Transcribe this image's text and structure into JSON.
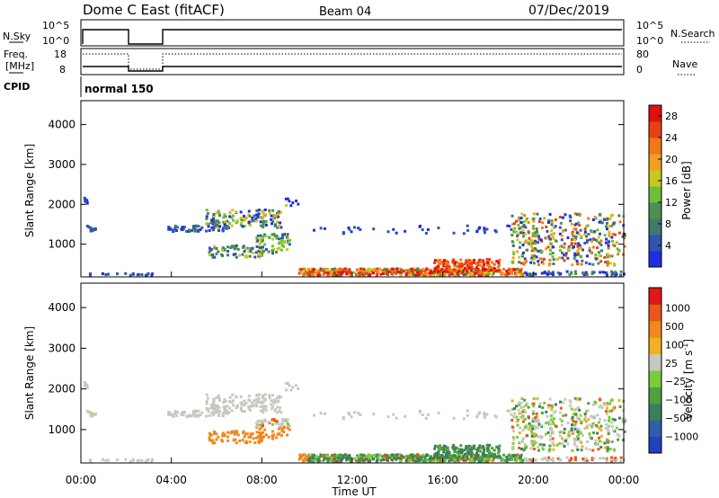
{
  "header": {
    "station": "Dome C East (fitACF)",
    "beam": "Beam 04",
    "date": "07/Dec/2019"
  },
  "panels": {
    "nsky": {
      "label": "N.Sky",
      "right_label": "N.Search",
      "left_ticks": [
        "10^5",
        "10^0"
      ],
      "right_ticks": [
        "10^5",
        "10^0"
      ]
    },
    "freq": {
      "label_top": "Freq.",
      "label_unit": "[MHz]",
      "right_label": "Nave",
      "left_ticks": [
        "18",
        "8"
      ],
      "right_ticks": [
        "80",
        "0"
      ]
    },
    "cpid": {
      "label": "CPID",
      "mode": "normal 150"
    }
  },
  "chart_data": [
    {
      "type": "heatmap",
      "quantity": "power",
      "xlabel": "Time UT",
      "ylabel": "Slant Range [km]",
      "colorbar_label": "Power [dB]",
      "x_ticks": [
        "00:00",
        "04:00",
        "08:00",
        "12:00",
        "16:00",
        "20:00",
        "00:00"
      ],
      "xlim_hours": [
        0,
        24
      ],
      "y_ticks": [
        1000,
        2000,
        3000,
        4000
      ],
      "ylim_km": [
        180,
        4600
      ],
      "colorbar_ticks": [
        4,
        8,
        12,
        16,
        20,
        24,
        28
      ],
      "colorbar_range": [
        0,
        30
      ],
      "colors": [
        "#1f2fe0",
        "#2e55b0",
        "#3f7a6a",
        "#4d8f4e",
        "#6dbf3a",
        "#c9c81c",
        "#f0a020",
        "#f07818",
        "#e84010",
        "#e01010"
      ]
    },
    {
      "type": "heatmap",
      "quantity": "velocity",
      "xlabel": "Time UT",
      "ylabel": "Slant Range [km]",
      "colorbar_label": "Velocity [m s",
      "colorbar_label_sup": "-1",
      "colorbar_label_end": "]",
      "x_ticks": [
        "00:00",
        "04:00",
        "08:00",
        "12:00",
        "16:00",
        "20:00",
        "00:00"
      ],
      "xlim_hours": [
        0,
        24
      ],
      "y_ticks": [
        1000,
        2000,
        3000,
        4000
      ],
      "ylim_km": [
        180,
        4600
      ],
      "colorbar_ticks": [
        "1000",
        "500",
        "100",
        "25",
        "−25",
        "−100",
        "−500",
        "−1000"
      ],
      "colors": [
        "#2040c0",
        "#2e60a8",
        "#3b7f5a",
        "#4ea040",
        "#7acc38",
        "#c8c8c0",
        "#f0b020",
        "#f08820",
        "#e85818",
        "#e01818"
      ]
    }
  ]
}
